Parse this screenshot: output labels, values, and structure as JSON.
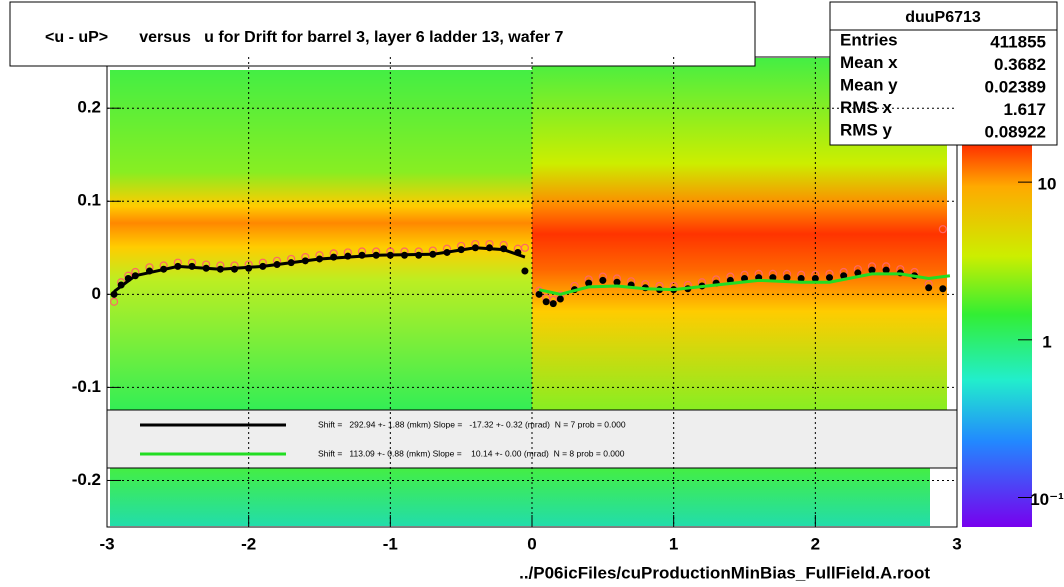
{
  "chart_data": {
    "type": "scatter",
    "title": "<u - uP>       versus   u for Drift for barrel 3, layer 6 ladder 13, wafer 7",
    "xlabel": "../P06icFiles/cuProductionMinBias_FullField.A.root",
    "xlim": [
      -3,
      3
    ],
    "xticks": [
      -3,
      -2,
      -1,
      0,
      1,
      2,
      3
    ],
    "ylim": [
      -0.25,
      0.255
    ],
    "yticks": [
      -0.2,
      -0.1,
      0,
      0.1,
      0.2
    ],
    "grid": true,
    "series": [
      {
        "color": "#ff6666",
        "marker": "open",
        "x": [
          -2.95,
          -2.9,
          -2.85,
          -2.8,
          -2.7,
          -2.6,
          -2.5,
          -2.4,
          -2.3,
          -2.2,
          -2.1,
          -2.0,
          -1.9,
          -1.8,
          -1.7,
          -1.6,
          -1.5,
          -1.4,
          -1.3,
          -1.2,
          -1.1,
          -1.0,
          -0.9,
          -0.8,
          -0.7,
          -0.6,
          -0.5,
          -0.4,
          -0.3,
          -0.2,
          -0.1,
          -0.05,
          0.05,
          0.1,
          0.15,
          0.2,
          0.3,
          0.4,
          0.5,
          0.6,
          0.7,
          0.8,
          0.9,
          1.0,
          1.1,
          1.2,
          1.3,
          1.4,
          1.5,
          1.6,
          1.7,
          1.8,
          1.9,
          2.0,
          2.1,
          2.2,
          2.3,
          2.4,
          2.5,
          2.6,
          2.7,
          2.8,
          2.9
        ],
        "values": [
          -0.008,
          0.013,
          0.02,
          0.024,
          0.029,
          0.031,
          0.034,
          0.034,
          0.032,
          0.031,
          0.031,
          0.032,
          0.034,
          0.036,
          0.038,
          0.04,
          0.042,
          0.044,
          0.045,
          0.046,
          0.046,
          0.046,
          0.046,
          0.046,
          0.047,
          0.049,
          0.052,
          0.054,
          0.054,
          0.053,
          0.049,
          0.05,
          0.004,
          -0.004,
          -0.006,
          -0.001,
          0.009,
          0.016,
          0.019,
          0.017,
          0.014,
          0.011,
          0.009,
          0.009,
          0.01,
          0.013,
          0.016,
          0.019,
          0.021,
          0.022,
          0.022,
          0.022,
          0.021,
          0.021,
          0.022,
          0.024,
          0.027,
          0.03,
          0.03,
          0.027,
          0.024,
          0.011,
          0.07
        ]
      },
      {
        "color": "#000000",
        "marker": "filled",
        "x": [
          -2.95,
          -2.9,
          -2.85,
          -2.8,
          -2.7,
          -2.6,
          -2.5,
          -2.4,
          -2.3,
          -2.2,
          -2.1,
          -2.0,
          -1.9,
          -1.8,
          -1.7,
          -1.6,
          -1.5,
          -1.4,
          -1.3,
          -1.2,
          -1.1,
          -1.0,
          -0.9,
          -0.8,
          -0.7,
          -0.6,
          -0.5,
          -0.4,
          -0.3,
          -0.2,
          -0.1,
          -0.05,
          0.05,
          0.1,
          0.15,
          0.2,
          0.3,
          0.4,
          0.5,
          0.6,
          0.7,
          0.8,
          0.9,
          1.0,
          1.1,
          1.2,
          1.3,
          1.4,
          1.5,
          1.6,
          1.7,
          1.8,
          1.9,
          2.0,
          2.1,
          2.2,
          2.3,
          2.4,
          2.5,
          2.6,
          2.7,
          2.8,
          2.9
        ],
        "values": [
          0.0,
          0.01,
          0.017,
          0.02,
          0.025,
          0.027,
          0.03,
          0.03,
          0.028,
          0.027,
          0.027,
          0.028,
          0.03,
          0.032,
          0.034,
          0.036,
          0.038,
          0.04,
          0.041,
          0.042,
          0.042,
          0.042,
          0.042,
          0.042,
          0.043,
          0.045,
          0.048,
          0.05,
          0.05,
          0.049,
          0.045,
          0.025,
          0.0,
          -0.008,
          -0.01,
          -0.005,
          0.005,
          0.012,
          0.015,
          0.013,
          0.01,
          0.007,
          0.005,
          0.005,
          0.006,
          0.009,
          0.012,
          0.015,
          0.017,
          0.018,
          0.018,
          0.018,
          0.017,
          0.017,
          0.018,
          0.02,
          0.023,
          0.026,
          0.026,
          0.023,
          0.02,
          0.007,
          0.006
        ]
      },
      {
        "name": "Shift =   292.94 +- 1.88 (mkm) Slope =   -17.32 +- 0.32 (mrad)  N = 7 prob = 0.000",
        "color": "#000000",
        "marker": "line",
        "x": [
          -2.95,
          -2.8,
          -2.5,
          -2.2,
          -1.9,
          -1.5,
          -1.1,
          -0.7,
          -0.4,
          -0.2,
          -0.05
        ],
        "values": [
          0.003,
          0.02,
          0.03,
          0.027,
          0.03,
          0.038,
          0.042,
          0.043,
          0.05,
          0.048,
          0.04
        ]
      },
      {
        "name": "Shift =   113.09 +- 0.88 (mkm) Slope =    10.14 +- 0.00 (mrad)  N = 8 prob = 0.000",
        "color": "#22dd22",
        "marker": "line",
        "x": [
          0.05,
          0.2,
          0.4,
          0.6,
          0.8,
          1.0,
          1.3,
          1.6,
          1.9,
          2.1,
          2.4,
          2.6,
          2.8,
          2.95
        ],
        "values": [
          0.005,
          0.0,
          0.008,
          0.009,
          0.006,
          0.005,
          0.01,
          0.015,
          0.013,
          0.013,
          0.022,
          0.022,
          0.017,
          0.02
        ]
      }
    ],
    "stats": {
      "title": "duuP6713",
      "labels": [
        "Entries",
        "Mean x",
        "Mean y",
        "RMS x",
        "RMS y"
      ],
      "values": [
        411855,
        0.3682,
        0.02389,
        1.617,
        0.08922
      ]
    },
    "colorbar": {
      "log": true,
      "zlim": [
        0.065,
        18.5
      ],
      "ticks": [
        {
          "value": 10,
          "label": "10"
        },
        {
          "value": 1,
          "label": "1"
        },
        {
          "value": 0.1,
          "label": "10⁻¹"
        }
      ]
    }
  }
}
